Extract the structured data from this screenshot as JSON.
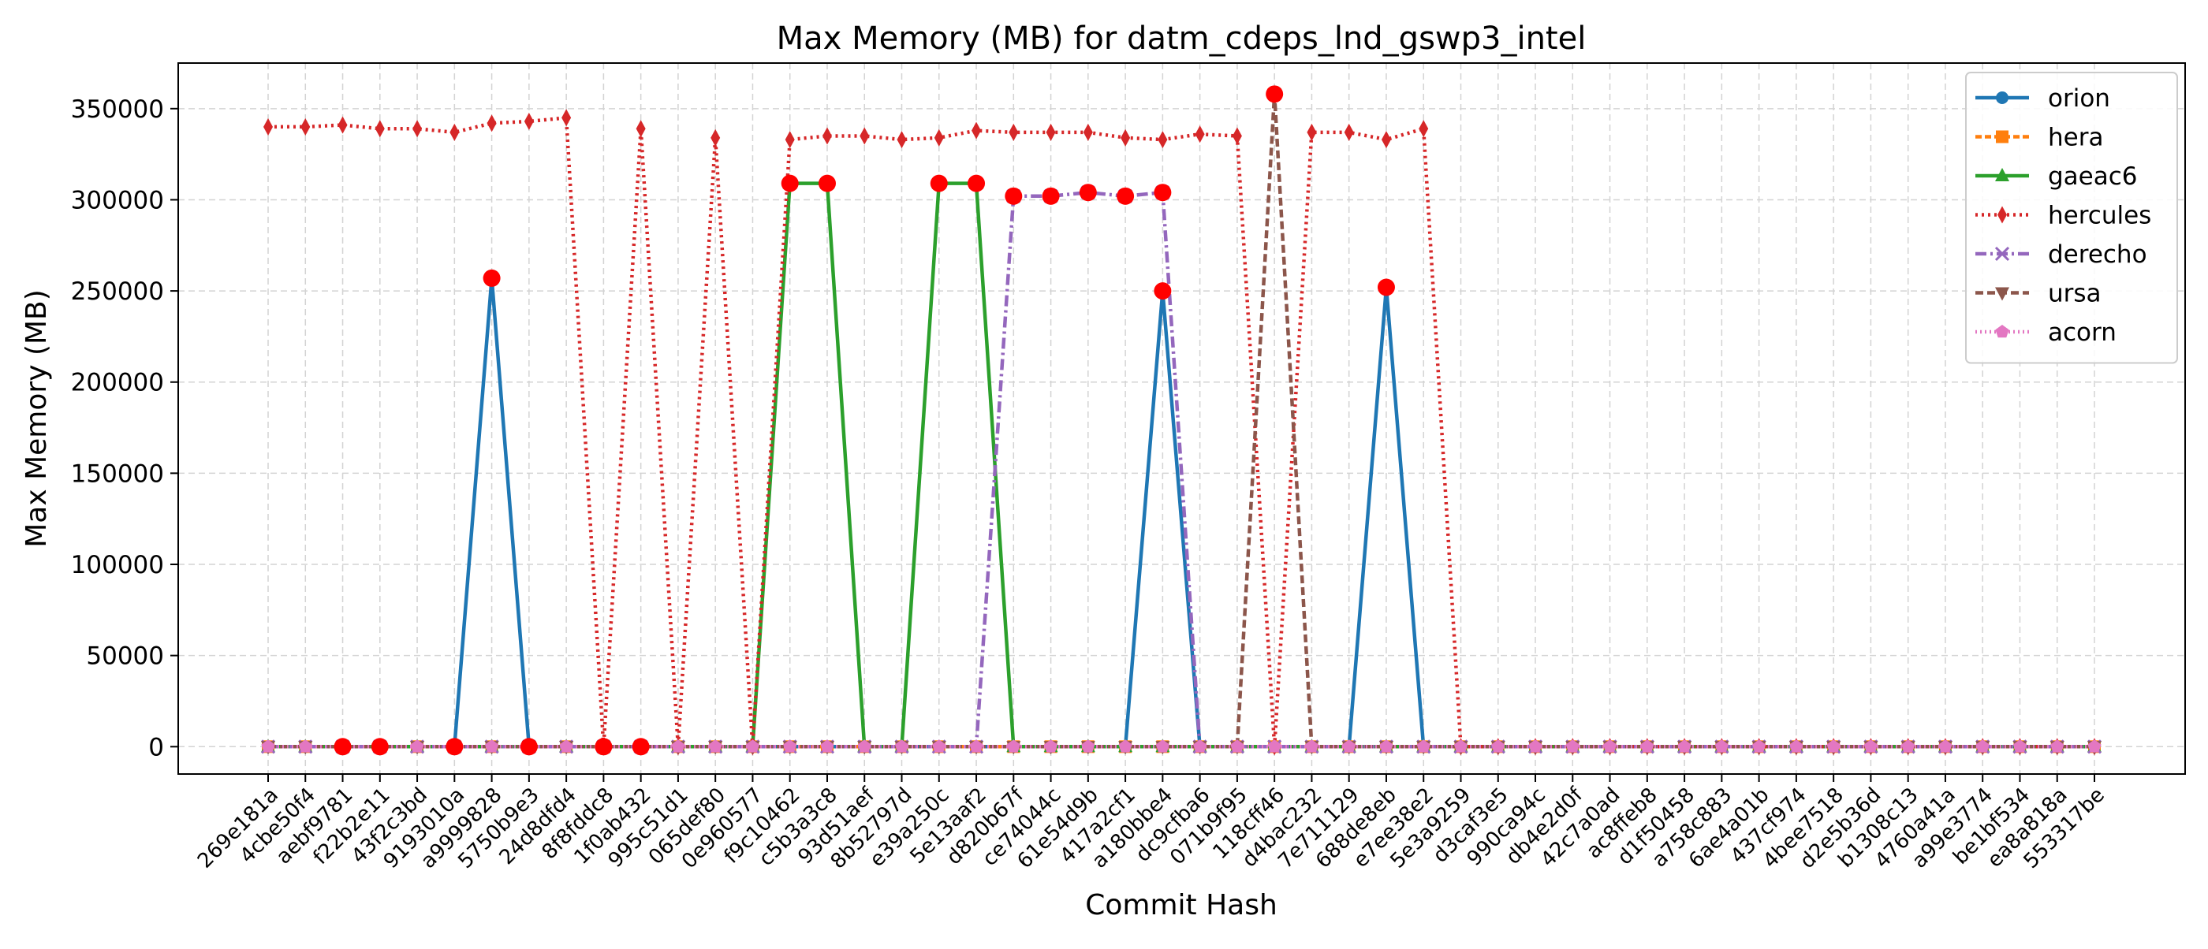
{
  "chart_data": {
    "type": "line",
    "title": "Max Memory (MB) for datm_cdeps_lnd_gswp3_intel",
    "xlabel": "Commit Hash",
    "ylabel": "Max Memory (MB)",
    "ylim": [
      -15000,
      375000
    ],
    "yticks": [
      0,
      50000,
      100000,
      150000,
      200000,
      250000,
      300000,
      350000
    ],
    "grid": true,
    "legend_position": "top-right",
    "categories": [
      "269e181a",
      "4cbe50f4",
      "aebf9781",
      "f22b2e11",
      "43f2c3bd",
      "9193010a",
      "a9999828",
      "5750b9e3",
      "24d8dfd4",
      "8f8fddc8",
      "1f0ab432",
      "995c51d1",
      "065def80",
      "0e960577",
      "f9c10462",
      "c5b3a3c8",
      "93d51aef",
      "8b52797d",
      "e39a250c",
      "5e13aaf2",
      "d820b67f",
      "ce74044c",
      "61e54d9b",
      "417a2cf1",
      "a180bbe4",
      "dc9cfba6",
      "071b9f95",
      "118cff46",
      "d4bac232",
      "7e711129",
      "688de8eb",
      "e7ee38e2",
      "5e3a9259",
      "d3caf3e5",
      "990ca94c",
      "db4e2d0f",
      "42c7a0ad",
      "ac8ffeb8",
      "d1f50458",
      "a758c883",
      "6ae4a01b",
      "437cf974",
      "4bee7518",
      "d2e5b36d",
      "b1308c13",
      "4760a41a",
      "a99e3774",
      "be1bf534",
      "ea8a818a",
      "553317be"
    ],
    "series": [
      {
        "name": "orion",
        "color": "#1f77b4",
        "dash": "",
        "marker": "circle",
        "values": [
          0,
          0,
          0,
          0,
          0,
          0,
          257000,
          0,
          0,
          0,
          0,
          0,
          0,
          0,
          0,
          0,
          0,
          0,
          0,
          0,
          0,
          0,
          0,
          0,
          250000,
          0,
          0,
          0,
          0,
          0,
          252000,
          0,
          0,
          0,
          0,
          0,
          0,
          0,
          0,
          0,
          0,
          0,
          0,
          0,
          0,
          0,
          0,
          0,
          0,
          0
        ]
      },
      {
        "name": "hera",
        "color": "#ff7f0e",
        "dash": "8 4",
        "marker": "square",
        "values": [
          0,
          0,
          0,
          0,
          0,
          0,
          0,
          0,
          0,
          0,
          0,
          0,
          0,
          0,
          0,
          0,
          0,
          0,
          0,
          0,
          0,
          0,
          0,
          0,
          0,
          0,
          0,
          0,
          0,
          0,
          0,
          0,
          0,
          0,
          0,
          0,
          0,
          0,
          0,
          0,
          0,
          0,
          0,
          0,
          0,
          0,
          0,
          0,
          0,
          0
        ]
      },
      {
        "name": "gaeac6",
        "color": "#2ca02c",
        "dash": "",
        "marker": "triangle-up",
        "values": [
          0,
          0,
          0,
          0,
          0,
          0,
          0,
          0,
          0,
          0,
          0,
          0,
          0,
          0,
          309000,
          309000,
          0,
          0,
          309000,
          309000,
          0,
          0,
          0,
          0,
          0,
          0,
          0,
          0,
          0,
          0,
          0,
          0,
          0,
          0,
          0,
          0,
          0,
          0,
          0,
          0,
          0,
          0,
          0,
          0,
          0,
          0,
          0,
          0,
          0,
          0
        ]
      },
      {
        "name": "hercules",
        "color": "#d62728",
        "dash": "3 5",
        "marker": "diamond",
        "values": [
          340000,
          340000,
          341000,
          339000,
          339000,
          337000,
          342000,
          343000,
          345000,
          0,
          339000,
          0,
          334000,
          0,
          333000,
          335000,
          335000,
          333000,
          334000,
          338000,
          337000,
          337000,
          337000,
          334000,
          333000,
          336000,
          335000,
          0,
          337000,
          337000,
          333000,
          339000,
          0,
          0,
          0,
          0,
          0,
          0,
          0,
          0,
          0,
          0,
          0,
          0,
          0,
          0,
          0,
          0,
          0,
          0
        ]
      },
      {
        "name": "derecho",
        "color": "#9467bd",
        "dash": "14 5 3 5",
        "marker": "x",
        "values": [
          0,
          0,
          0,
          0,
          0,
          0,
          0,
          0,
          0,
          0,
          0,
          0,
          0,
          0,
          0,
          0,
          0,
          0,
          0,
          0,
          302000,
          302000,
          304000,
          302000,
          304000,
          0,
          0,
          0,
          0,
          0,
          0,
          0,
          0,
          0,
          0,
          0,
          0,
          0,
          0,
          0,
          0,
          0,
          0,
          0,
          0,
          0,
          0,
          0,
          0,
          0
        ]
      },
      {
        "name": "ursa",
        "color": "#8c564b",
        "dash": "10 5",
        "marker": "triangle-down",
        "values": [
          0,
          0,
          0,
          0,
          0,
          0,
          0,
          0,
          0,
          0,
          0,
          0,
          0,
          0,
          0,
          0,
          0,
          0,
          0,
          0,
          0,
          0,
          0,
          0,
          0,
          0,
          0,
          358000,
          0,
          0,
          0,
          0,
          0,
          0,
          0,
          0,
          0,
          0,
          0,
          0,
          0,
          0,
          0,
          0,
          0,
          0,
          0,
          0,
          0,
          0
        ]
      },
      {
        "name": "acorn",
        "color": "#e377c2",
        "dash": "2 4",
        "marker": "pentagon",
        "values": [
          0,
          0,
          0,
          0,
          0,
          0,
          0,
          0,
          0,
          0,
          0,
          0,
          0,
          0,
          0,
          0,
          0,
          0,
          0,
          0,
          0,
          0,
          0,
          0,
          0,
          0,
          0,
          0,
          0,
          0,
          0,
          0,
          0,
          0,
          0,
          0,
          0,
          0,
          0,
          0,
          0,
          0,
          0,
          0,
          0,
          0,
          0,
          0,
          0,
          0
        ]
      }
    ],
    "highlight_color": "#ff0000",
    "highlights": [
      {
        "category": "aebf9781",
        "value": 0
      },
      {
        "category": "f22b2e11",
        "value": 0
      },
      {
        "category": "9193010a",
        "value": 0
      },
      {
        "category": "a9999828",
        "value": 257000
      },
      {
        "category": "5750b9e3",
        "value": 0
      },
      {
        "category": "8f8fddc8",
        "value": 0
      },
      {
        "category": "1f0ab432",
        "value": 0
      },
      {
        "category": "f9c10462",
        "value": 309000
      },
      {
        "category": "c5b3a3c8",
        "value": 309000
      },
      {
        "category": "e39a250c",
        "value": 309000
      },
      {
        "category": "5e13aaf2",
        "value": 309000
      },
      {
        "category": "d820b67f",
        "value": 302000
      },
      {
        "category": "ce74044c",
        "value": 302000
      },
      {
        "category": "61e54d9b",
        "value": 304000
      },
      {
        "category": "417a2cf1",
        "value": 302000
      },
      {
        "category": "a180bbe4",
        "value": 304000
      },
      {
        "category": "a180bbe4",
        "value": 250000
      },
      {
        "category": "118cff46",
        "value": 358000
      },
      {
        "category": "688de8eb",
        "value": 252000
      }
    ]
  }
}
